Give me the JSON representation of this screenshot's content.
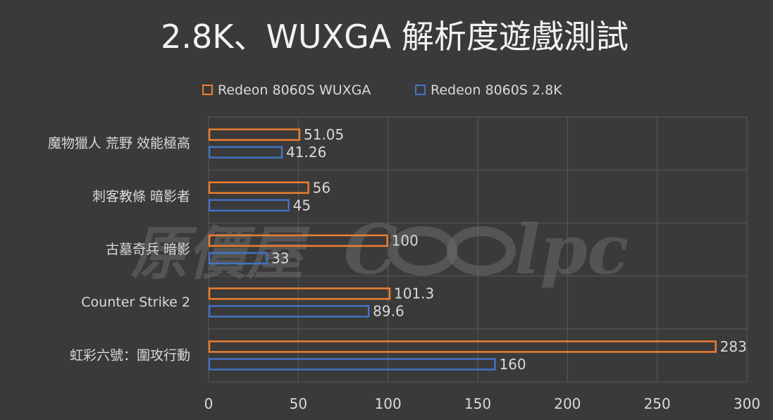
{
  "chart_data": {
    "type": "bar",
    "orientation": "horizontal",
    "title": "2.8K、WUXGA 解析度遊戲測試",
    "categories": [
      "魔物獵人 荒野 效能極高",
      "刺客教條 暗影者",
      "古墓奇兵 暗影",
      "Counter Strike 2",
      "虹彩六號：圍攻行動"
    ],
    "series": [
      {
        "name": "Redeon 8060S WUXGA",
        "color": "#ed7d31",
        "values": [
          51.05,
          56,
          100,
          101.3,
          283
        ]
      },
      {
        "name": "Redeon 8060S 2.8K",
        "color": "#4472c4",
        "values": [
          41.26,
          45,
          33,
          89.6,
          160
        ]
      }
    ],
    "value_labels": [
      [
        "51.05",
        "56",
        "100",
        "101.3",
        "283"
      ],
      [
        "41.26",
        "45",
        "33",
        "89.6",
        "160"
      ]
    ],
    "xlim": [
      0,
      300
    ],
    "xticks": [
      0,
      50,
      100,
      150,
      200,
      250,
      300
    ],
    "grid": true,
    "legend_position": "top"
  },
  "watermark": {
    "chinese": "原價屋",
    "latin_left": "C",
    "latin_right": "lpc"
  }
}
